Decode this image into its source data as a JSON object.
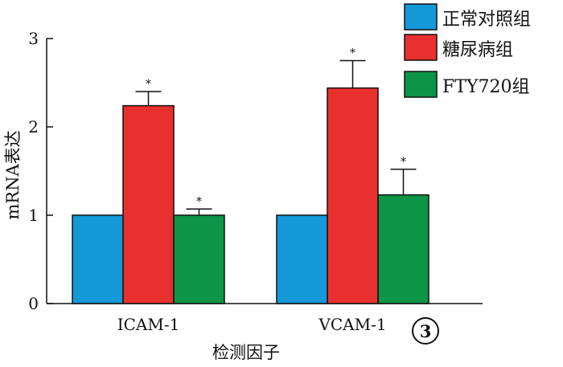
{
  "chart_data": {
    "type": "bar",
    "xlabel": "检测因子",
    "ylabel": "mRNA表达",
    "ylim": [
      0,
      3
    ],
    "yticks": [
      "0",
      "1",
      "2",
      "3"
    ],
    "categories": [
      "ICAM-1",
      "VCAM-1"
    ],
    "series": [
      {
        "name": "正常对照组",
        "color": "#1598D8",
        "values": [
          1.0,
          1.0
        ],
        "errors": [
          null,
          null
        ],
        "markers": [
          "",
          ""
        ]
      },
      {
        "name": "糖尿病组",
        "color": "#E8302E",
        "values": [
          2.24,
          2.44
        ],
        "errors": [
          0.16,
          0.31
        ],
        "markers": [
          "*",
          "*"
        ]
      },
      {
        "name": "FTY720组",
        "color": "#0C9447",
        "values": [
          1.0,
          1.23
        ],
        "errors": [
          0.07,
          0.29
        ],
        "markers": [
          "*",
          "*"
        ]
      }
    ],
    "legend_position": "top-right",
    "grid": false
  },
  "panel_label": "3"
}
